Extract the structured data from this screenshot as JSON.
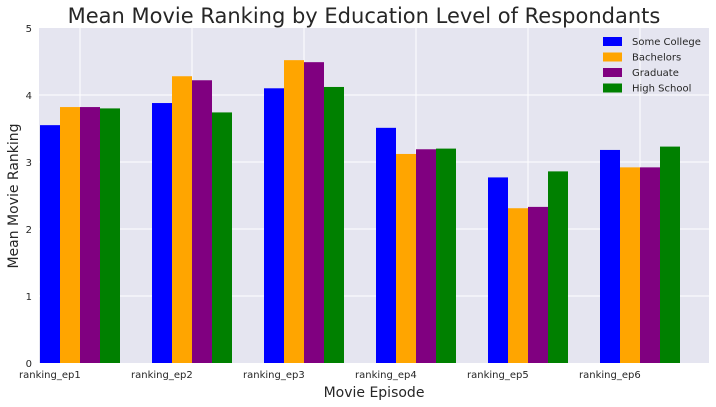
{
  "chart_data": {
    "type": "bar",
    "title": "Mean Movie Ranking by Education Level of Respondants",
    "xlabel": "Movie Episode",
    "ylabel": "Mean Movie Ranking",
    "ylim": [
      0,
      5
    ],
    "yticks": [
      "0",
      "1",
      "2",
      "3",
      "4",
      "5"
    ],
    "categories": [
      "ranking_ep1",
      "ranking_ep2",
      "ranking_ep3",
      "ranking_ep4",
      "ranking_ep5",
      "ranking_ep6"
    ],
    "series": [
      {
        "name": "Some College",
        "color": "#0000ff",
        "values": [
          3.55,
          3.88,
          4.1,
          3.51,
          2.77,
          3.18
        ]
      },
      {
        "name": "Bachelors",
        "color": "#ffa500",
        "values": [
          3.82,
          4.28,
          4.52,
          3.12,
          2.31,
          2.92
        ]
      },
      {
        "name": "Graduate",
        "color": "#800080",
        "values": [
          3.82,
          4.22,
          4.49,
          3.19,
          2.33,
          2.92
        ]
      },
      {
        "name": "High School",
        "color": "#008000",
        "values": [
          3.8,
          3.74,
          4.12,
          3.2,
          2.86,
          3.23
        ]
      }
    ],
    "grid": true,
    "legend_position": "top-right"
  }
}
